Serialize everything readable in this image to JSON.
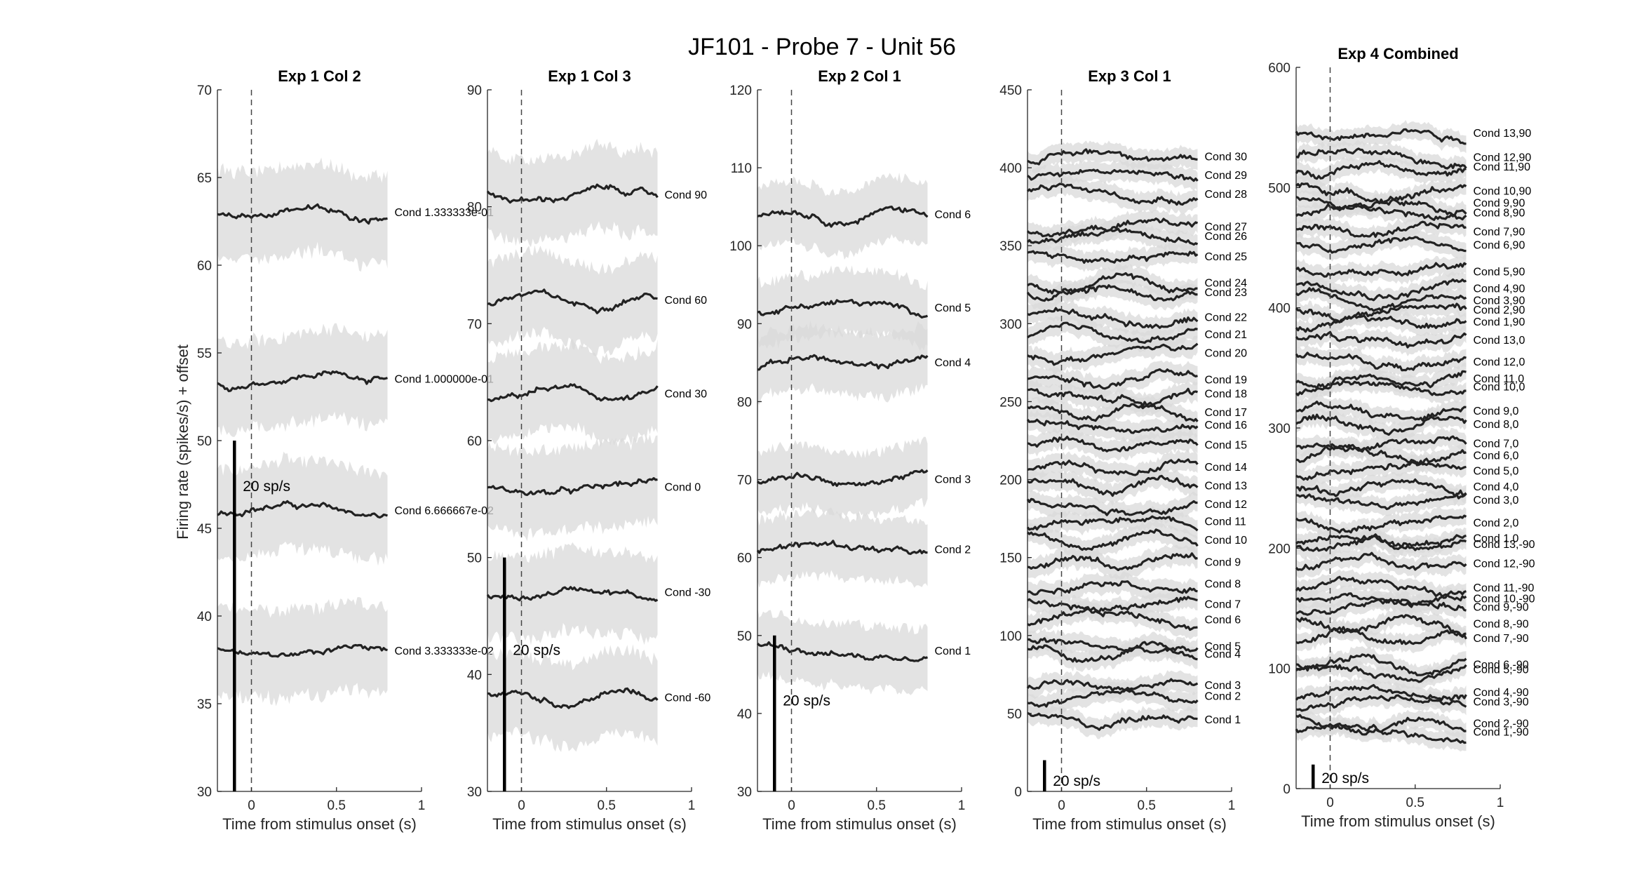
{
  "figure": {
    "suptitle": "JF101 - Probe 7 - Unit 56",
    "ylabel": "Firing rate (spikes/s) + offset"
  },
  "chart_data": [
    {
      "type": "line",
      "title": "Exp 1 Col 2",
      "xlabel": "Time from stimulus onset (s)",
      "xlim": [
        -0.2,
        1
      ],
      "ylim": [
        30,
        70
      ],
      "xticks": [
        0,
        0.5,
        1
      ],
      "yticks": [
        30,
        35,
        40,
        45,
        50,
        55,
        60,
        65,
        70
      ],
      "onset_line": 0,
      "scale_bar": {
        "label": "20 sp/s",
        "value": 20,
        "y0": 30
      },
      "series": [
        {
          "name": "Cond 3.333333e-02",
          "baseline": 38,
          "band": 2.5
        },
        {
          "name": "Cond 6.666667e-02",
          "baseline": 46,
          "band": 2.5
        },
        {
          "name": "Cond 1.000000e-01",
          "baseline": 53.5,
          "band": 2.5
        },
        {
          "name": "Cond 1.333333e-01",
          "baseline": 63,
          "band": 2.5
        }
      ]
    },
    {
      "type": "line",
      "title": "Exp 1 Col 3",
      "xlabel": "Time from stimulus onset (s)",
      "xlim": [
        -0.2,
        1
      ],
      "ylim": [
        30,
        90
      ],
      "xticks": [
        0,
        0.5,
        1
      ],
      "yticks": [
        30,
        40,
        50,
        60,
        70,
        80,
        90
      ],
      "onset_line": 0,
      "scale_bar": {
        "label": "20 sp/s",
        "value": 20,
        "y0": 30
      },
      "series": [
        {
          "name": "Cond -60",
          "baseline": 38,
          "band": 3.5
        },
        {
          "name": "Cond -30",
          "baseline": 47,
          "band": 3.5
        },
        {
          "name": "Cond 0",
          "baseline": 56,
          "band": 3.5
        },
        {
          "name": "Cond 30",
          "baseline": 64,
          "band": 3.5
        },
        {
          "name": "Cond 60",
          "baseline": 72,
          "band": 3.5
        },
        {
          "name": "Cond 90",
          "baseline": 81,
          "band": 3.5
        }
      ]
    },
    {
      "type": "line",
      "title": "Exp 2 Col 1",
      "xlabel": "Time from stimulus onset (s)",
      "xlim": [
        -0.2,
        1
      ],
      "ylim": [
        30,
        120
      ],
      "xticks": [
        0,
        0.5,
        1
      ],
      "yticks": [
        30,
        40,
        50,
        60,
        70,
        80,
        90,
        100,
        110,
        120
      ],
      "onset_line": 0,
      "scale_bar": {
        "label": "20 sp/s",
        "value": 20,
        "y0": 30
      },
      "series": [
        {
          "name": "Cond 1",
          "baseline": 48,
          "band": 4
        },
        {
          "name": "Cond 2",
          "baseline": 61,
          "band": 4
        },
        {
          "name": "Cond 3",
          "baseline": 70,
          "band": 4
        },
        {
          "name": "Cond 4",
          "baseline": 85,
          "band": 4
        },
        {
          "name": "Cond 5",
          "baseline": 92,
          "band": 4
        },
        {
          "name": "Cond 6",
          "baseline": 104,
          "band": 4
        }
      ]
    },
    {
      "type": "line",
      "title": "Exp 3 Col 1",
      "xlabel": "Time from stimulus onset (s)",
      "xlim": [
        -0.2,
        1
      ],
      "ylim": [
        0,
        450
      ],
      "xticks": [
        0,
        0.5,
        1
      ],
      "yticks": [
        0,
        50,
        100,
        150,
        200,
        250,
        300,
        350,
        400,
        450
      ],
      "onset_line": 0,
      "scale_bar": {
        "label": "20 sp/s",
        "value": 20,
        "y0": 0
      },
      "series": [
        {
          "name": "Cond 1",
          "baseline": 46,
          "band": 6
        },
        {
          "name": "Cond 2",
          "baseline": 61,
          "band": 6
        },
        {
          "name": "Cond 3",
          "baseline": 68,
          "band": 6
        },
        {
          "name": "Cond 4",
          "baseline": 88,
          "band": 6
        },
        {
          "name": "Cond 5",
          "baseline": 93,
          "band": 6
        },
        {
          "name": "Cond 6",
          "baseline": 110,
          "band": 6
        },
        {
          "name": "Cond 7",
          "baseline": 120,
          "band": 6
        },
        {
          "name": "Cond 8",
          "baseline": 133,
          "band": 6
        },
        {
          "name": "Cond 9",
          "baseline": 147,
          "band": 6
        },
        {
          "name": "Cond 10",
          "baseline": 161,
          "band": 6
        },
        {
          "name": "Cond 11",
          "baseline": 173,
          "band": 6
        },
        {
          "name": "Cond 12",
          "baseline": 184,
          "band": 6
        },
        {
          "name": "Cond 13",
          "baseline": 196,
          "band": 6
        },
        {
          "name": "Cond 14",
          "baseline": 208,
          "band": 6
        },
        {
          "name": "Cond 15",
          "baseline": 222,
          "band": 6
        },
        {
          "name": "Cond 16",
          "baseline": 235,
          "band": 6
        },
        {
          "name": "Cond 17",
          "baseline": 243,
          "band": 6
        },
        {
          "name": "Cond 18",
          "baseline": 255,
          "band": 6
        },
        {
          "name": "Cond 19",
          "baseline": 264,
          "band": 6
        },
        {
          "name": "Cond 20",
          "baseline": 281,
          "band": 6
        },
        {
          "name": "Cond 21",
          "baseline": 293,
          "band": 6
        },
        {
          "name": "Cond 22",
          "baseline": 304,
          "band": 6
        },
        {
          "name": "Cond 23",
          "baseline": 320,
          "band": 6
        },
        {
          "name": "Cond 24",
          "baseline": 326,
          "band": 6
        },
        {
          "name": "Cond 25",
          "baseline": 343,
          "band": 6
        },
        {
          "name": "Cond 26",
          "baseline": 356,
          "band": 6
        },
        {
          "name": "Cond 27",
          "baseline": 362,
          "band": 6
        },
        {
          "name": "Cond 28",
          "baseline": 383,
          "band": 6
        },
        {
          "name": "Cond 29",
          "baseline": 395,
          "band": 6
        },
        {
          "name": "Cond 30",
          "baseline": 407,
          "band": 6
        }
      ]
    },
    {
      "type": "line",
      "title": "Exp 4 Combined",
      "xlabel": "Time from stimulus onset (s)",
      "xlim": [
        -0.2,
        1
      ],
      "ylim": [
        0,
        600
      ],
      "xticks": [
        0,
        0.5,
        1
      ],
      "yticks": [
        0,
        100,
        200,
        300,
        400,
        500,
        600
      ],
      "onset_line": 0,
      "scale_bar": {
        "label": "20 sp/s",
        "value": 20,
        "y0": 0
      },
      "series": [
        {
          "name": "Cond 1,-90",
          "baseline": 47,
          "band": 7
        },
        {
          "name": "Cond 2,-90",
          "baseline": 54,
          "band": 7
        },
        {
          "name": "Cond 3,-90",
          "baseline": 72,
          "band": 7
        },
        {
          "name": "Cond 4,-90",
          "baseline": 80,
          "band": 7
        },
        {
          "name": "Cond 5,-90",
          "baseline": 99,
          "band": 7
        },
        {
          "name": "Cond 6,-90",
          "baseline": 103,
          "band": 7
        },
        {
          "name": "Cond 7,-90",
          "baseline": 125,
          "band": 7
        },
        {
          "name": "Cond 8,-90",
          "baseline": 137,
          "band": 7
        },
        {
          "name": "Cond 9,-90",
          "baseline": 151,
          "band": 7
        },
        {
          "name": "Cond 10,-90",
          "baseline": 158,
          "band": 7
        },
        {
          "name": "Cond 11,-90",
          "baseline": 167,
          "band": 7
        },
        {
          "name": "Cond 12,-90",
          "baseline": 187,
          "band": 7
        },
        {
          "name": "Cond 13,-90",
          "baseline": 203,
          "band": 7
        },
        {
          "name": "Cond 1,0",
          "baseline": 208,
          "band": 7
        },
        {
          "name": "Cond 2,0",
          "baseline": 221,
          "band": 7
        },
        {
          "name": "Cond 3,0",
          "baseline": 240,
          "band": 7
        },
        {
          "name": "Cond 4,0",
          "baseline": 251,
          "band": 7
        },
        {
          "name": "Cond 5,0",
          "baseline": 264,
          "band": 7
        },
        {
          "name": "Cond 6,0",
          "baseline": 277,
          "band": 7
        },
        {
          "name": "Cond 7,0",
          "baseline": 287,
          "band": 7
        },
        {
          "name": "Cond 8,0",
          "baseline": 303,
          "band": 7
        },
        {
          "name": "Cond 9,0",
          "baseline": 314,
          "band": 7
        },
        {
          "name": "Cond 10,0",
          "baseline": 334,
          "band": 7
        },
        {
          "name": "Cond 11,0",
          "baseline": 341,
          "band": 7
        },
        {
          "name": "Cond 12,0",
          "baseline": 355,
          "band": 7
        },
        {
          "name": "Cond 13,0",
          "baseline": 373,
          "band": 7
        },
        {
          "name": "Cond 1,90",
          "baseline": 388,
          "band": 7
        },
        {
          "name": "Cond 2,90",
          "baseline": 398,
          "band": 7
        },
        {
          "name": "Cond 3,90",
          "baseline": 406,
          "band": 7
        },
        {
          "name": "Cond 4,90",
          "baseline": 416,
          "band": 7
        },
        {
          "name": "Cond 5,90",
          "baseline": 430,
          "band": 7
        },
        {
          "name": "Cond 6,90",
          "baseline": 452,
          "band": 7
        },
        {
          "name": "Cond 7,90",
          "baseline": 463,
          "band": 7
        },
        {
          "name": "Cond 8,90",
          "baseline": 479,
          "band": 7
        },
        {
          "name": "Cond 9,90",
          "baseline": 487,
          "band": 7
        },
        {
          "name": "Cond 10,90",
          "baseline": 497,
          "band": 7
        },
        {
          "name": "Cond 11,90",
          "baseline": 517,
          "band": 7
        },
        {
          "name": "Cond 12,90",
          "baseline": 525,
          "band": 7
        },
        {
          "name": "Cond 13,90",
          "baseline": 545,
          "band": 7
        }
      ]
    }
  ]
}
